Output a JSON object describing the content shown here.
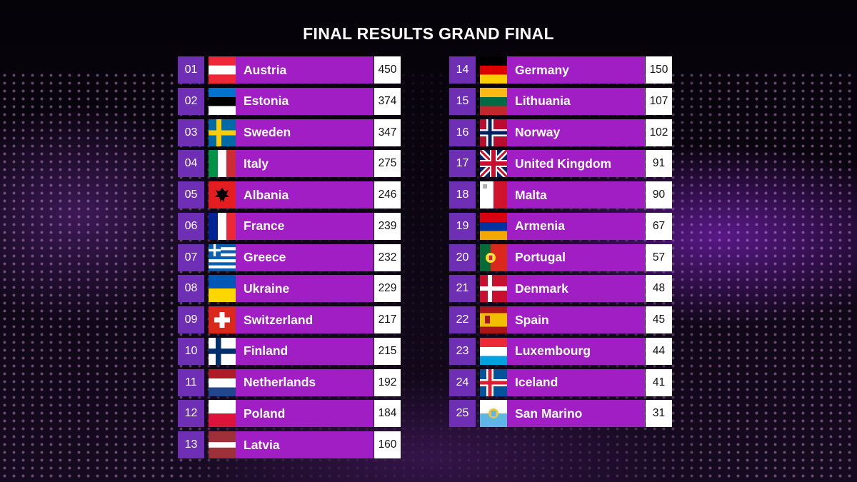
{
  "title": "FINAL RESULTS GRAND FINAL",
  "colors": {
    "rank_bg": "#6f2fb5",
    "name_bg": "#a01ec4",
    "points_bg": "#ffffff"
  },
  "left_column": [
    {
      "rank": "01",
      "country": "Austria",
      "points": "450",
      "flag": "austria-flag-icon"
    },
    {
      "rank": "02",
      "country": "Estonia",
      "points": "374",
      "flag": "estonia-flag-icon"
    },
    {
      "rank": "03",
      "country": "Sweden",
      "points": "347",
      "flag": "sweden-flag-icon"
    },
    {
      "rank": "04",
      "country": "Italy",
      "points": "275",
      "flag": "italy-flag-icon"
    },
    {
      "rank": "05",
      "country": "Albania",
      "points": "246",
      "flag": "albania-flag-icon"
    },
    {
      "rank": "06",
      "country": "France",
      "points": "239",
      "flag": "france-flag-icon"
    },
    {
      "rank": "07",
      "country": "Greece",
      "points": "232",
      "flag": "greece-flag-icon"
    },
    {
      "rank": "08",
      "country": "Ukraine",
      "points": "229",
      "flag": "ukraine-flag-icon"
    },
    {
      "rank": "09",
      "country": "Switzerland",
      "points": "217",
      "flag": "switzerland-flag-icon"
    },
    {
      "rank": "10",
      "country": "Finland",
      "points": "215",
      "flag": "finland-flag-icon"
    },
    {
      "rank": "11",
      "country": "Netherlands",
      "points": "192",
      "flag": "netherlands-flag-icon"
    },
    {
      "rank": "12",
      "country": "Poland",
      "points": "184",
      "flag": "poland-flag-icon"
    },
    {
      "rank": "13",
      "country": "Latvia",
      "points": "160",
      "flag": "latvia-flag-icon"
    }
  ],
  "right_column": [
    {
      "rank": "14",
      "country": "Germany",
      "points": "150",
      "flag": "germany-flag-icon"
    },
    {
      "rank": "15",
      "country": "Lithuania",
      "points": "107",
      "flag": "lithuania-flag-icon"
    },
    {
      "rank": "16",
      "country": "Norway",
      "points": "102",
      "flag": "norway-flag-icon"
    },
    {
      "rank": "17",
      "country": "United Kingdom",
      "points": "91",
      "flag": "united-kingdom-flag-icon"
    },
    {
      "rank": "18",
      "country": "Malta",
      "points": "90",
      "flag": "malta-flag-icon"
    },
    {
      "rank": "19",
      "country": "Armenia",
      "points": "67",
      "flag": "armenia-flag-icon"
    },
    {
      "rank": "20",
      "country": "Portugal",
      "points": "57",
      "flag": "portugal-flag-icon"
    },
    {
      "rank": "21",
      "country": "Denmark",
      "points": "48",
      "flag": "denmark-flag-icon"
    },
    {
      "rank": "22",
      "country": "Spain",
      "points": "45",
      "flag": "spain-flag-icon"
    },
    {
      "rank": "23",
      "country": "Luxembourg",
      "points": "44",
      "flag": "luxembourg-flag-icon"
    },
    {
      "rank": "24",
      "country": "Iceland",
      "points": "41",
      "flag": "iceland-flag-icon"
    },
    {
      "rank": "25",
      "country": "San Marino",
      "points": "31",
      "flag": "san-marino-flag-icon"
    }
  ]
}
